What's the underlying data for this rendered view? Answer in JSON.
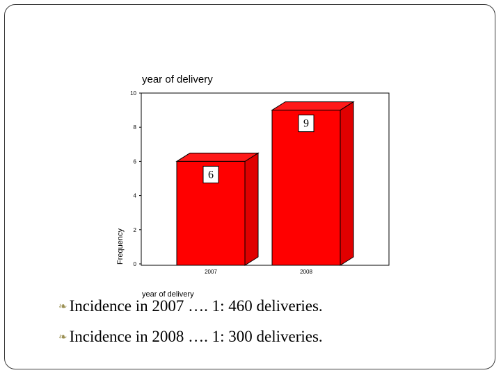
{
  "chart_data": {
    "type": "bar",
    "title": "year of delivery",
    "xlabel": "year of delivery",
    "ylabel": "Frequency",
    "categories": [
      "2007",
      "2008"
    ],
    "values": [
      6,
      9
    ],
    "data_labels": [
      "6",
      "9"
    ],
    "ylim": [
      0,
      10
    ],
    "yticks": [
      0,
      2,
      4,
      6,
      8,
      10
    ],
    "grid": false,
    "bar_color": "#ff0000",
    "bar_style": "3d"
  },
  "bullets": [
    {
      "icon": "leaf-bullet-icon",
      "text": "Incidence in 2007 …. 1: 460 deliveries."
    },
    {
      "icon": "leaf-bullet-icon",
      "text": "Incidence in 2008 …. 1: 300 deliveries."
    }
  ],
  "colors": {
    "bullet": "#9a8f52",
    "bar": "#ff0000",
    "frame": "#3a3a3a"
  }
}
